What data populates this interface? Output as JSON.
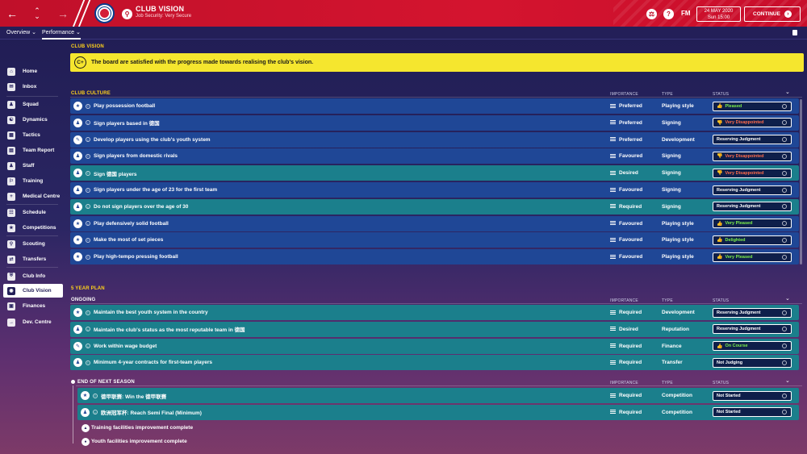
{
  "header": {
    "title": "CLUB VISION",
    "subtitle": "Job Security: Very Secure",
    "fm_label": "FM",
    "date_line1": "24 MAY 2020",
    "date_line2": "Sun 15:00",
    "continue_label": "CONTINUE",
    "back_icon": "arrow-left-icon",
    "forward_icon": "arrow-right-icon"
  },
  "subnav": {
    "overview": "Overview",
    "performance": "Performance"
  },
  "sidebar": {
    "items": [
      {
        "label": "Home"
      },
      {
        "label": "Inbox"
      },
      {
        "label": "Squad"
      },
      {
        "label": "Dynamics"
      },
      {
        "label": "Tactics"
      },
      {
        "label": "Team Report"
      },
      {
        "label": "Staff"
      },
      {
        "label": "Training"
      },
      {
        "label": "Medical Centre"
      },
      {
        "label": "Schedule"
      },
      {
        "label": "Competitions"
      },
      {
        "label": "Scouting"
      },
      {
        "label": "Transfers"
      },
      {
        "label": "Club Info"
      },
      {
        "label": "Club Vision"
      },
      {
        "label": "Finances"
      },
      {
        "label": "Dev. Centre"
      }
    ]
  },
  "main": {
    "section_label": "CLUB VISION",
    "banner": {
      "grade": "C+",
      "text": "The board are satisfied with the progress made towards realising the club's vision."
    },
    "columns": {
      "importance": "IMPORTANCE",
      "type": "TYPE",
      "status": "STATUS"
    },
    "culture": {
      "label": "CLUB CULTURE",
      "rows": [
        {
          "label": "Play possession football",
          "importance": "Preferred",
          "type": "Playing style",
          "status": "Pleased",
          "status_tone": "good"
        },
        {
          "label": "Sign players based in 德国",
          "importance": "Preferred",
          "type": "Signing",
          "status": "Very Disappointed",
          "status_tone": "bad"
        },
        {
          "label": "Develop players using the club's youth system",
          "importance": "Preferred",
          "type": "Development",
          "status": "Reserving Judgment",
          "status_tone": "neutral"
        },
        {
          "label": "Sign players from domestic rivals",
          "importance": "Favoured",
          "type": "Signing",
          "status": "Very Disappointed",
          "status_tone": "bad"
        },
        {
          "label": "Sign 德国 players",
          "importance": "Desired",
          "type": "Signing",
          "status": "Very Disappointed",
          "status_tone": "bad"
        },
        {
          "label": "Sign players under the age of 23 for the first team",
          "importance": "Favoured",
          "type": "Signing",
          "status": "Reserving Judgment",
          "status_tone": "neutral"
        },
        {
          "label": "Do not sign players over the age of 30",
          "importance": "Required",
          "type": "Signing",
          "status": "Reserving Judgment",
          "status_tone": "neutral"
        },
        {
          "label": "Play defensively solid football",
          "importance": "Favoured",
          "type": "Playing style",
          "status": "Very Pleased",
          "status_tone": "good"
        },
        {
          "label": "Make the most of set pieces",
          "importance": "Favoured",
          "type": "Playing style",
          "status": "Delighted",
          "status_tone": "good"
        },
        {
          "label": "Play high-tempo pressing football",
          "importance": "Favoured",
          "type": "Playing style",
          "status": "Very Pleased",
          "status_tone": "good"
        }
      ]
    },
    "plan": {
      "label": "5 YEAR PLAN",
      "ongoing_label": "ONGOING",
      "ongoing": [
        {
          "label": "Maintain the best youth system in the country",
          "importance": "Required",
          "type": "Development",
          "status": "Reserving Judgment",
          "status_tone": "neutral"
        },
        {
          "label": "Maintain the club's status as the most reputable team in 德国",
          "importance": "Desired",
          "type": "Reputation",
          "status": "Reserving Judgment",
          "status_tone": "neutral"
        },
        {
          "label": "Work within wage budget",
          "importance": "Required",
          "type": "Finance",
          "status": "On Course",
          "status_tone": "good"
        },
        {
          "label": "Minimum 4-year contracts for first-team players",
          "importance": "Required",
          "type": "Transfer",
          "status": "Not Judging",
          "status_tone": "neutral"
        }
      ],
      "next_label": "END OF NEXT SEASON",
      "next": [
        {
          "label": "德甲联赛: Win the 德甲联赛",
          "importance": "Required",
          "type": "Competition",
          "status": "Not Started",
          "status_tone": "neutral"
        },
        {
          "label": "欧洲冠军杯: Reach Semi Final (Minimum)",
          "importance": "Required",
          "type": "Competition",
          "status": "Not Started",
          "status_tone": "neutral"
        }
      ],
      "facilities": [
        {
          "label": "Training facilities improvement complete"
        },
        {
          "label": "Youth facilities improvement complete"
        }
      ]
    }
  },
  "colors": {
    "topbar": "#d4142f",
    "good": "#7cf04a",
    "bad": "#ff6b4a",
    "banner": "#f5e62e"
  }
}
